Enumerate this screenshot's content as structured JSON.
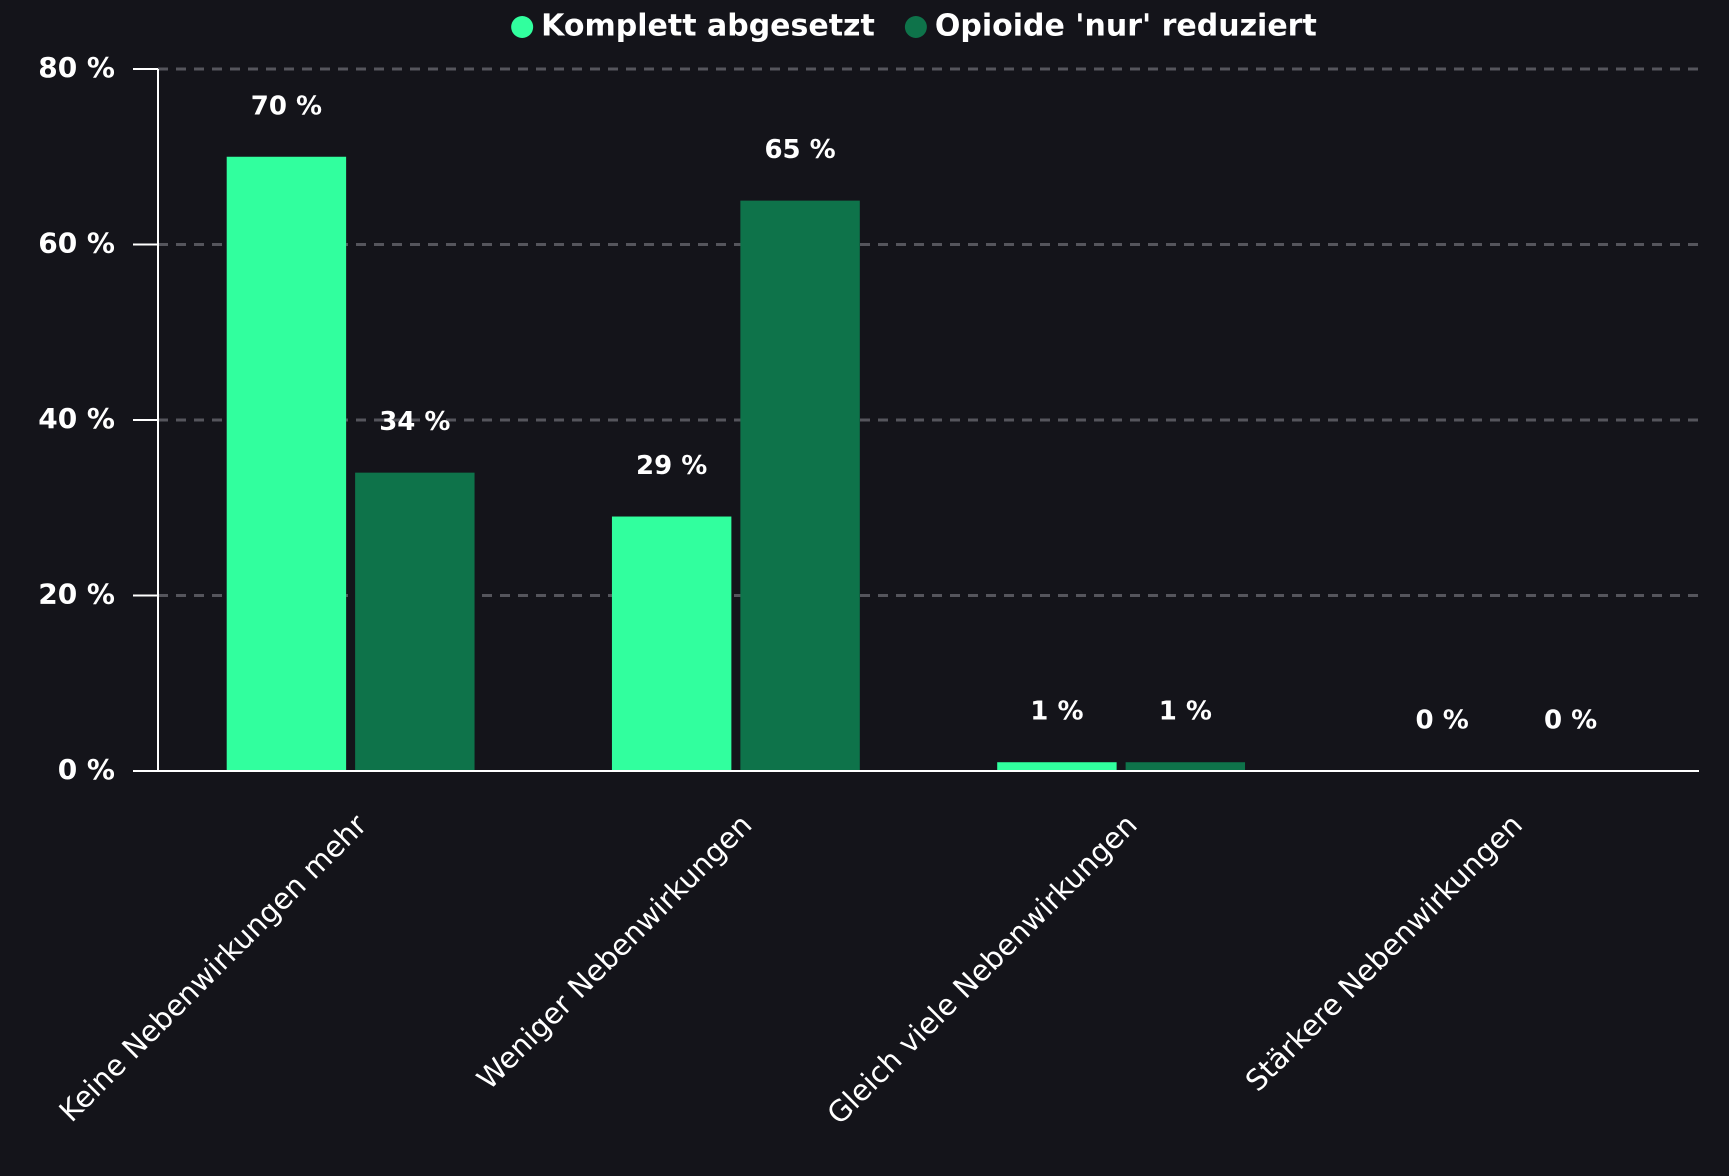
{
  "chart_data": {
    "type": "bar",
    "categories": [
      "Keine Nebenwirkungen mehr",
      "Weniger Nebenwirkungen",
      "Gleich viele Nebenwirkungen",
      "Stärkere Nebenwirkungen"
    ],
    "series": [
      {
        "name": "Komplett abgesetzt",
        "color": "#31ff9e",
        "values": [
          70,
          29,
          1,
          0
        ],
        "value_labels": [
          "70 %",
          "29 %",
          "1 %",
          "0 %"
        ]
      },
      {
        "name": "Opioide 'nur' reduziert",
        "color": "#0e734a",
        "values": [
          34,
          65,
          1,
          0
        ],
        "value_labels": [
          "34 %",
          "65 %",
          "1 %",
          "0 %"
        ]
      }
    ],
    "ylim": [
      0,
      80
    ],
    "yticks": [
      {
        "value": 0,
        "label": "0 %"
      },
      {
        "value": 20,
        "label": "20 %"
      },
      {
        "value": 40,
        "label": "40 %"
      },
      {
        "value": 60,
        "label": "60 %"
      },
      {
        "value": 80,
        "label": "80 %"
      }
    ],
    "grid": true,
    "legend": "top"
  }
}
